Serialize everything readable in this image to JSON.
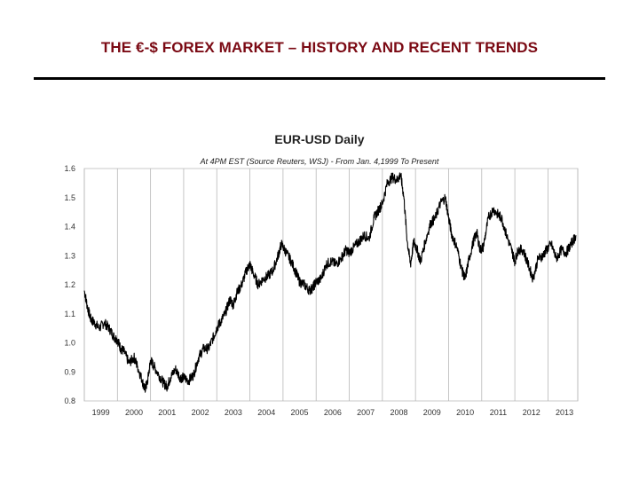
{
  "page": {
    "title": "THE €-$ FOREX MARKET – HISTORY AND RECENT TRENDS",
    "title_color": "#7b0a14",
    "rule_color": "#000000"
  },
  "chart_data": {
    "type": "line",
    "title": "EUR-USD Daily",
    "subtitle": "At 4PM EST (Source Reuters, WSJ) - From Jan. 4,1999 To Present",
    "xlabel": "",
    "ylabel": "",
    "xlim": [
      1999.0,
      2013.9
    ],
    "ylim": [
      0.8,
      1.6
    ],
    "y_ticks": [
      "0.8",
      "0.9",
      "1.0",
      "1.1",
      "1.2",
      "1.3",
      "1.4",
      "1.5",
      "1.6"
    ],
    "x_ticks": [
      "1999",
      "2000",
      "2001",
      "2002",
      "2003",
      "2004",
      "2005",
      "2006",
      "2007",
      "2008",
      "2009",
      "2010",
      "2011",
      "2012",
      "2013"
    ],
    "grid": {
      "vertical": true,
      "horizontal": false
    },
    "legend": "none",
    "line_color": "#000000",
    "series": [
      {
        "x": [
          1999.0,
          1999.1,
          1999.2,
          1999.3,
          1999.45,
          1999.6,
          1999.75,
          1999.9,
          2000.0,
          2000.1,
          2000.2,
          2000.35,
          2000.5,
          2000.6,
          2000.75,
          2000.82,
          2000.9,
          2001.0,
          2001.1,
          2001.25,
          2001.4,
          2001.5,
          2001.6,
          2001.75,
          2001.9,
          2002.0,
          2002.15,
          2002.3,
          2002.45,
          2002.6,
          2002.75,
          2002.9,
          2003.0,
          2003.1,
          2003.25,
          2003.4,
          2003.5,
          2003.6,
          2003.75,
          2003.9,
          2004.0,
          2004.1,
          2004.25,
          2004.4,
          2004.55,
          2004.7,
          2004.85,
          2004.95,
          2005.1,
          2005.25,
          2005.4,
          2005.5,
          2005.65,
          2005.8,
          2005.9,
          2006.0,
          2006.15,
          2006.3,
          2006.45,
          2006.6,
          2006.75,
          2006.9,
          2007.0,
          2007.15,
          2007.3,
          2007.45,
          2007.6,
          2007.75,
          2007.9,
          2008.0,
          2008.15,
          2008.3,
          2008.45,
          2008.55,
          2008.65,
          2008.75,
          2008.85,
          2008.95,
          2009.05,
          2009.15,
          2009.3,
          2009.45,
          2009.6,
          2009.75,
          2009.9,
          2010.0,
          2010.1,
          2010.25,
          2010.4,
          2010.5,
          2010.6,
          2010.75,
          2010.85,
          2010.95,
          2011.05,
          2011.2,
          2011.35,
          2011.5,
          2011.6,
          2011.75,
          2011.9,
          2012.0,
          2012.1,
          2012.25,
          2012.4,
          2012.55,
          2012.7,
          2012.85,
          2012.95,
          2013.1,
          2013.25,
          2013.4,
          2013.55,
          2013.7,
          2013.85
        ],
        "y": [
          1.18,
          1.12,
          1.08,
          1.07,
          1.05,
          1.07,
          1.05,
          1.02,
          1.01,
          0.98,
          0.97,
          0.93,
          0.95,
          0.92,
          0.87,
          0.84,
          0.86,
          0.94,
          0.92,
          0.89,
          0.86,
          0.85,
          0.88,
          0.91,
          0.88,
          0.88,
          0.87,
          0.89,
          0.95,
          0.98,
          0.98,
          1.02,
          1.05,
          1.07,
          1.1,
          1.15,
          1.13,
          1.17,
          1.2,
          1.25,
          1.27,
          1.24,
          1.2,
          1.22,
          1.23,
          1.25,
          1.3,
          1.34,
          1.31,
          1.28,
          1.24,
          1.21,
          1.2,
          1.18,
          1.19,
          1.21,
          1.22,
          1.27,
          1.28,
          1.27,
          1.29,
          1.32,
          1.31,
          1.33,
          1.35,
          1.37,
          1.36,
          1.43,
          1.46,
          1.48,
          1.55,
          1.57,
          1.56,
          1.58,
          1.5,
          1.35,
          1.27,
          1.35,
          1.32,
          1.28,
          1.35,
          1.41,
          1.43,
          1.48,
          1.5,
          1.43,
          1.37,
          1.33,
          1.25,
          1.22,
          1.28,
          1.35,
          1.38,
          1.32,
          1.33,
          1.43,
          1.46,
          1.44,
          1.43,
          1.37,
          1.32,
          1.28,
          1.32,
          1.32,
          1.27,
          1.22,
          1.29,
          1.3,
          1.32,
          1.34,
          1.29,
          1.32,
          1.31,
          1.34,
          1.37
        ]
      }
    ]
  }
}
